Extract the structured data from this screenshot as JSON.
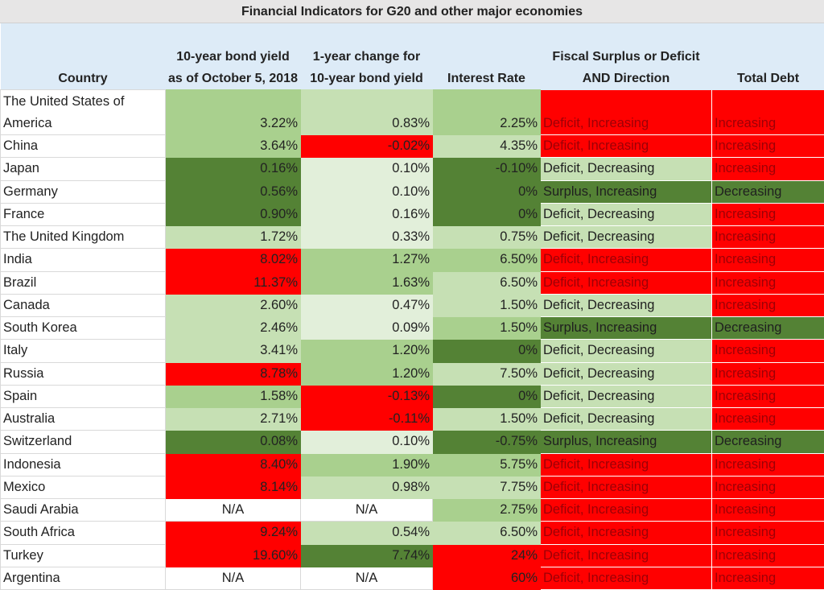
{
  "title": "Financial Indicators for G20 and other major economies",
  "headers": [
    "Country",
    "10-year bond yield as of October 5, 2018",
    "1-year change for 10-year bond yield",
    "Interest Rate",
    "Fiscal Surplus or Deficit AND Direction",
    "Total Debt"
  ],
  "colors": {
    "r": "#ff0000",
    "g4": "#548235",
    "g3": "#a9d08e",
    "g2": "#c6e0b4",
    "g1": "#e2efda",
    "w": "#ffffff",
    "header": "#ddebf7",
    "title": "#e7e6e6"
  },
  "rows": [
    {
      "country": "The United States of America",
      "yield": "3.22%",
      "yield_c": "g3",
      "change": "0.83%",
      "change_c": "g2",
      "rate": "2.25%",
      "rate_c": "g3",
      "fiscal": "Deficit, Increasing",
      "fiscal_c": "r",
      "debt": "Increasing",
      "debt_c": "r"
    },
    {
      "country": "China",
      "yield": "3.64%",
      "yield_c": "g3",
      "change": "-0.02%",
      "change_c": "r",
      "rate": "4.35%",
      "rate_c": "g2",
      "fiscal": "Deficit, Increasing",
      "fiscal_c": "r",
      "debt": "Increasing",
      "debt_c": "r"
    },
    {
      "country": "Japan",
      "yield": "0.16%",
      "yield_c": "g4",
      "change": "0.10%",
      "change_c": "g1",
      "rate": "-0.10%",
      "rate_c": "g4",
      "fiscal": "Deficit, Decreasing",
      "fiscal_c": "g2",
      "debt": "Increasing",
      "debt_c": "r"
    },
    {
      "country": "Germany",
      "yield": "0.56%",
      "yield_c": "g4",
      "change": "0.10%",
      "change_c": "g1",
      "rate": "0%",
      "rate_c": "g4",
      "fiscal": "Surplus, Increasing",
      "fiscal_c": "g4",
      "debt": "Decreasing",
      "debt_c": "g4"
    },
    {
      "country": "France",
      "yield": "0.90%",
      "yield_c": "g4",
      "change": "0.16%",
      "change_c": "g1",
      "rate": "0%",
      "rate_c": "g4",
      "fiscal": "Deficit, Decreasing",
      "fiscal_c": "g2",
      "debt": "Increasing",
      "debt_c": "r"
    },
    {
      "country": "The United Kingdom",
      "yield": "1.72%",
      "yield_c": "g2",
      "change": "0.33%",
      "change_c": "g1",
      "rate": "0.75%",
      "rate_c": "g2",
      "fiscal": "Deficit, Decreasing",
      "fiscal_c": "g2",
      "debt": "Increasing",
      "debt_c": "r"
    },
    {
      "country": "India",
      "yield": "8.02%",
      "yield_c": "r",
      "change": "1.27%",
      "change_c": "g3",
      "rate": "6.50%",
      "rate_c": "g3",
      "fiscal": "Deficit, Increasing",
      "fiscal_c": "r",
      "debt": "Increasing",
      "debt_c": "r"
    },
    {
      "country": "Brazil",
      "yield": "11.37%",
      "yield_c": "r",
      "change": "1.63%",
      "change_c": "g3",
      "rate": "6.50%",
      "rate_c": "g2",
      "fiscal": "Deficit, Increasing",
      "fiscal_c": "r",
      "debt": "Increasing",
      "debt_c": "r"
    },
    {
      "country": "Canada",
      "yield": "2.60%",
      "yield_c": "g2",
      "change": "0.47%",
      "change_c": "g1",
      "rate": "1.50%",
      "rate_c": "g2",
      "fiscal": "Deficit, Decreasing",
      "fiscal_c": "g2",
      "debt": "Increasing",
      "debt_c": "r"
    },
    {
      "country": "South Korea",
      "yield": "2.46%",
      "yield_c": "g2",
      "change": "0.09%",
      "change_c": "g1",
      "rate": "1.50%",
      "rate_c": "g3",
      "fiscal": "Surplus, Increasing",
      "fiscal_c": "g4",
      "debt": "Decreasing",
      "debt_c": "g4"
    },
    {
      "country": "Italy",
      "yield": "3.41%",
      "yield_c": "g2",
      "change": "1.20%",
      "change_c": "g3",
      "rate": "0%",
      "rate_c": "g4",
      "fiscal": "Deficit, Decreasing",
      "fiscal_c": "g2",
      "debt": "Increasing",
      "debt_c": "r"
    },
    {
      "country": "Russia",
      "yield": "8.78%",
      "yield_c": "r",
      "change": "1.20%",
      "change_c": "g3",
      "rate": "7.50%",
      "rate_c": "g2",
      "fiscal": "Deficit, Decreasing",
      "fiscal_c": "g2",
      "debt": "Increasing",
      "debt_c": "r"
    },
    {
      "country": "Spain",
      "yield": "1.58%",
      "yield_c": "g3",
      "change": "-0.13%",
      "change_c": "r",
      "rate": "0%",
      "rate_c": "g4",
      "fiscal": "Deficit, Decreasing",
      "fiscal_c": "g2",
      "debt": "Increasing",
      "debt_c": "r"
    },
    {
      "country": "Australia",
      "yield": "2.71%",
      "yield_c": "g2",
      "change": "-0.11%",
      "change_c": "r",
      "rate": "1.50%",
      "rate_c": "g2",
      "fiscal": "Deficit, Decreasing",
      "fiscal_c": "g2",
      "debt": "Increasing",
      "debt_c": "r"
    },
    {
      "country": "Switzerland",
      "yield": "0.08%",
      "yield_c": "g4",
      "change": "0.10%",
      "change_c": "g1",
      "rate": "-0.75%",
      "rate_c": "g4",
      "fiscal": "Surplus, Increasing",
      "fiscal_c": "g4",
      "debt": "Decreasing",
      "debt_c": "g4"
    },
    {
      "country": "Indonesia",
      "yield": "8.40%",
      "yield_c": "r",
      "change": "1.90%",
      "change_c": "g3",
      "rate": "5.75%",
      "rate_c": "g3",
      "fiscal": "Deficit, Increasing",
      "fiscal_c": "r",
      "debt": "Increasing",
      "debt_c": "r"
    },
    {
      "country": "Mexico",
      "yield": "8.14%",
      "yield_c": "r",
      "change": "0.98%",
      "change_c": "g2",
      "rate": "7.75%",
      "rate_c": "g2",
      "fiscal": "Deficit, Increasing",
      "fiscal_c": "r",
      "debt": "Increasing",
      "debt_c": "r"
    },
    {
      "country": "Saudi Arabia",
      "yield": "N/A",
      "yield_c": "w",
      "change": "N/A",
      "change_c": "w",
      "rate": "2.75%",
      "rate_c": "g3",
      "fiscal": "Deficit, Increasing",
      "fiscal_c": "r",
      "debt": "Increasing",
      "debt_c": "r"
    },
    {
      "country": "South Africa",
      "yield": "9.24%",
      "yield_c": "r",
      "change": "0.54%",
      "change_c": "g2",
      "rate": "6.50%",
      "rate_c": "g2",
      "fiscal": "Deficit, Increasing",
      "fiscal_c": "r",
      "debt": "Increasing",
      "debt_c": "r"
    },
    {
      "country": "Turkey",
      "yield": "19.60%",
      "yield_c": "r",
      "change": "7.74%",
      "change_c": "g4",
      "rate": "24%",
      "rate_c": "r",
      "fiscal": "Deficit, Increasing",
      "fiscal_c": "r",
      "debt": "Increasing",
      "debt_c": "r"
    },
    {
      "country": "Argentina",
      "yield": "N/A",
      "yield_c": "w",
      "change": "N/A",
      "change_c": "w",
      "rate": "60%",
      "rate_c": "r",
      "fiscal": "Deficit, Increasing",
      "fiscal_c": "r",
      "debt": "Increasing",
      "debt_c": "r"
    }
  ]
}
